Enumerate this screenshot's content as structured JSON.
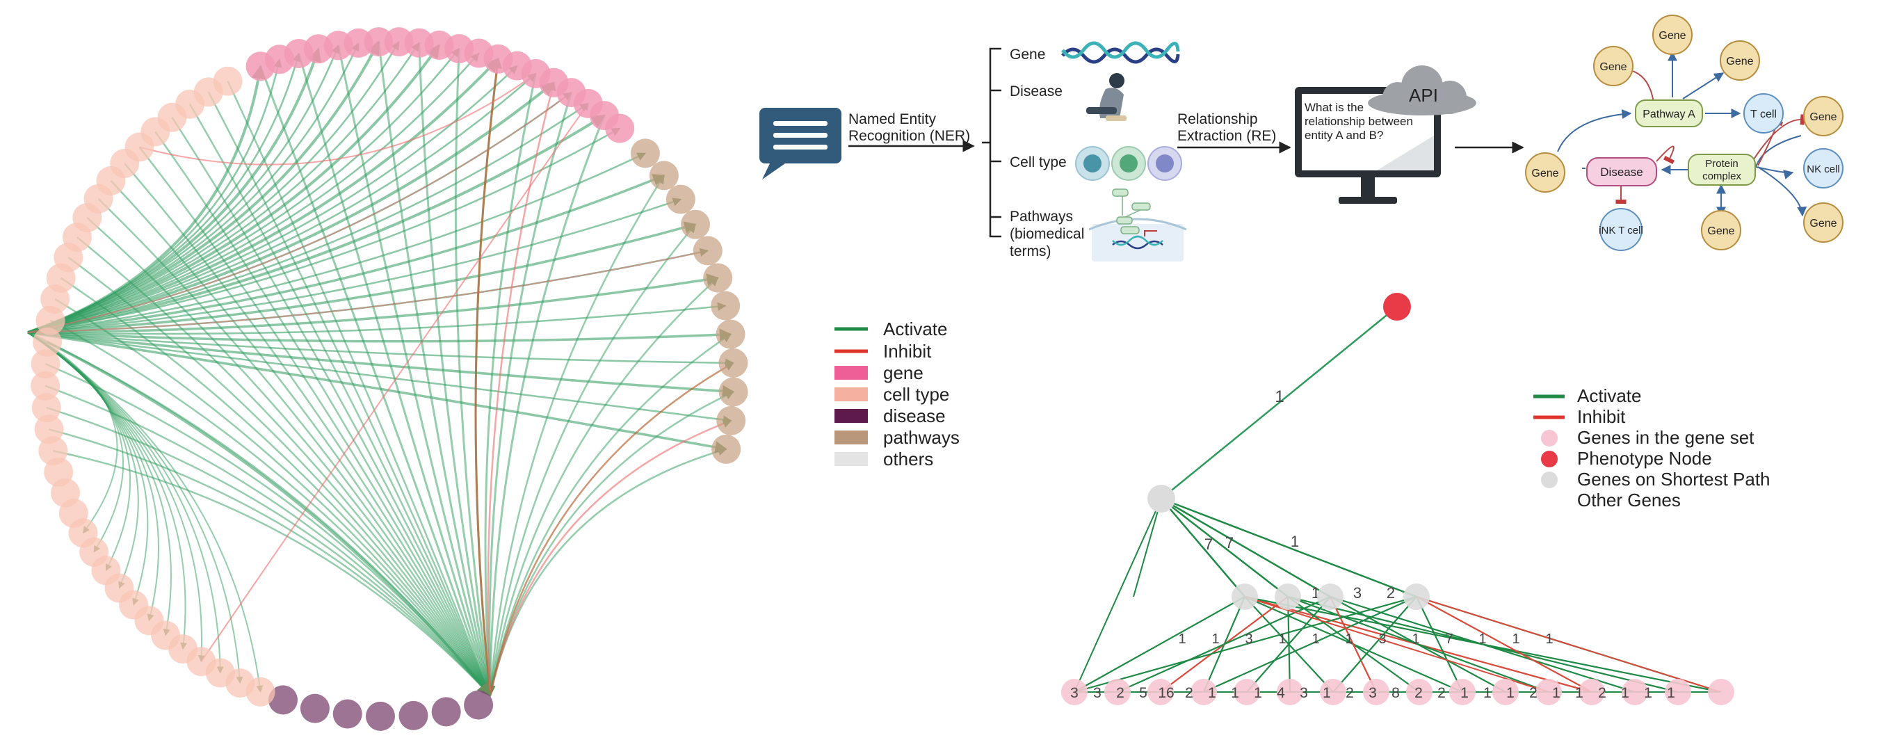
{
  "colors": {
    "activate": "#1e8a45",
    "inhibit": "#e0342b",
    "gene": "#f07aa0",
    "cell_type": "#f6b7a3",
    "disease": "#5e1a4d",
    "pathways": "#b9977b",
    "others": "#e4e4e4",
    "gene_set": "#f7c6d2",
    "phenotype": "#e83b47",
    "shortest_path": "#dcdcdc",
    "chat": "#325a7a",
    "gene_node": "#f3dfae",
    "disease_node": "#f6cfe0",
    "pathway_node": "#e8f2cc",
    "cell_node": "#d9ebf8"
  },
  "legend_left": {
    "activate": "Activate",
    "inhibit": "Inhibit",
    "gene": "gene",
    "cell_type": "cell type",
    "disease": "disease",
    "pathways": "pathways",
    "others": "others"
  },
  "pipeline": {
    "ner_line1": "Named Entity",
    "ner_line2": "Recognition (NER)",
    "gene": "Gene",
    "disease": "Disease",
    "cell_type": "Cell type",
    "pathways_line1": "Pathways",
    "pathways_line2": "(biomedical",
    "pathways_line3": "terms)",
    "re_line1": "Relationship",
    "re_line2": "Extraction (RE)",
    "api": "API",
    "question_line1": "What is the",
    "question_line2": "relationship between",
    "question_line3": "entity A and B?"
  },
  "knowledge_graph": {
    "gene": "Gene",
    "pathway_a": "Pathway A",
    "t_cell": "T cell",
    "disease": "Disease",
    "protein_line1": "Protein",
    "protein_line2": "complex",
    "nk_cell": "NK cell",
    "inkt_cell": "iNK T cell"
  },
  "legend_right": {
    "activate": "Activate",
    "inhibit": "Inhibit",
    "gene_set": "Genes in the gene set",
    "phenotype": "Phenotype Node",
    "shortest_path": "Genes on Shortest Path",
    "other_genes": "Other Genes"
  },
  "tree": {
    "top_edge_label": "1",
    "mid_labels": [
      "7",
      "7",
      "1"
    ],
    "level2_labels": [
      "1",
      "3",
      "2"
    ],
    "level3_labels": [
      "1",
      "1",
      "3",
      "1",
      "1",
      "1",
      "3",
      "1",
      "7",
      "1",
      "1",
      "1"
    ],
    "bottom_labels": [
      "3",
      "3",
      "2",
      "5",
      "16",
      "2",
      "1",
      "1",
      "1",
      "4",
      "3",
      "1",
      "2",
      "3",
      "8",
      "2",
      "2",
      "1",
      "1",
      "1",
      "2",
      "1",
      "1",
      "2",
      "1",
      "1",
      "1"
    ]
  }
}
